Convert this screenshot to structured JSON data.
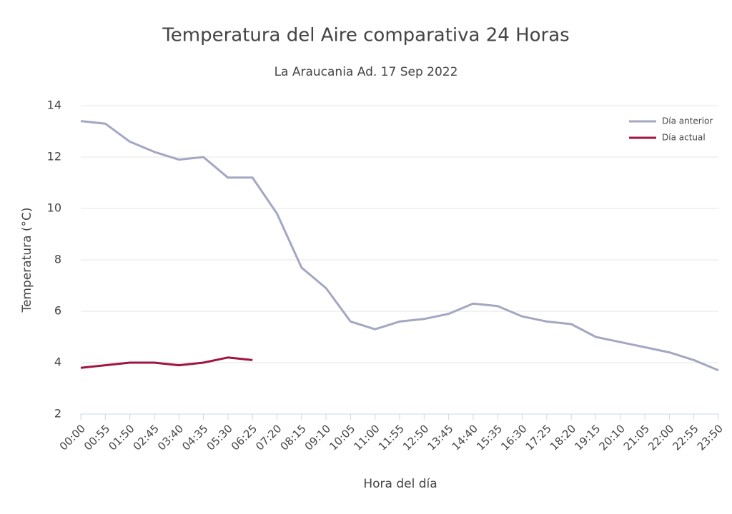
{
  "chart_data": {
    "type": "line",
    "title": "Temperatura del Aire comparativa 24 Horas",
    "subtitle": "La Araucania Ad. 17 Sep 2022",
    "x_label": "Hora del día",
    "y_label": "Temperatura (°C)",
    "categories": [
      "00:00",
      "00:55",
      "01:50",
      "02:45",
      "03:40",
      "04:35",
      "05:30",
      "06:25",
      "07:20",
      "08:15",
      "09:10",
      "10:05",
      "11:00",
      "11:55",
      "12:50",
      "13:45",
      "14:40",
      "15:35",
      "16:30",
      "17:25",
      "18:20",
      "19:15",
      "20:10",
      "21:05",
      "22:00",
      "22:55",
      "23:50"
    ],
    "series": [
      {
        "name": "Día anterior",
        "color": "#a3a7c2",
        "values": [
          13.4,
          13.3,
          12.6,
          12.2,
          11.9,
          12.0,
          11.2,
          11.2,
          9.8,
          7.7,
          6.9,
          5.6,
          5.3,
          5.6,
          5.7,
          5.9,
          6.3,
          6.2,
          5.8,
          5.6,
          5.5,
          5.0,
          4.8,
          4.6,
          4.4,
          4.1,
          3.7
        ]
      },
      {
        "name": "Día actual",
        "color": "#a0153e",
        "values": [
          3.8,
          3.9,
          4.0,
          4.0,
          3.9,
          4.0,
          4.2,
          4.1,
          null,
          null,
          null,
          null,
          null,
          null,
          null,
          null,
          null,
          null,
          null,
          null,
          null,
          null,
          null,
          null,
          null,
          null,
          null
        ]
      }
    ],
    "ylim": [
      2,
      14
    ],
    "yticks": [
      2,
      4,
      6,
      8,
      10,
      12,
      14
    ],
    "grid": true,
    "legend": "top-right"
  }
}
